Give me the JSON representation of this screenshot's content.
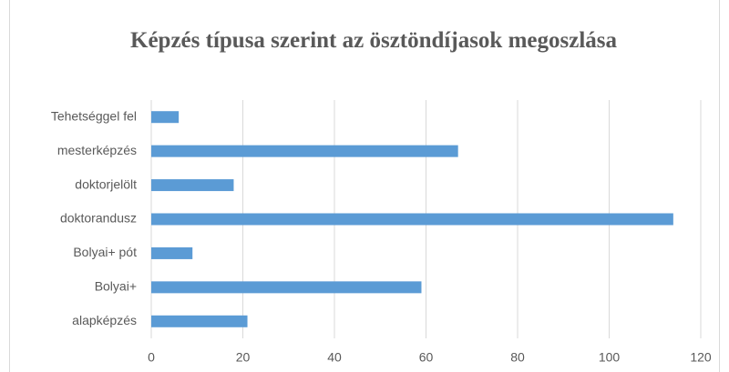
{
  "chart_data": {
    "type": "barh",
    "title": "Képzés típusa szerint az ösztöndíjasok megoszlása",
    "categories": [
      "alapképzés",
      "Bolyai+",
      "Bolyai+ pót",
      "doktorandusz",
      "doktorjelölt",
      "mesterképzés",
      "Tehetséggel fel"
    ],
    "values": [
      21,
      59,
      9,
      114,
      18,
      67,
      6
    ],
    "color": "#5b9bd5",
    "xlim": [
      0,
      120
    ],
    "xticks": [
      0,
      20,
      40,
      60,
      80,
      100,
      120
    ],
    "grid": true
  }
}
